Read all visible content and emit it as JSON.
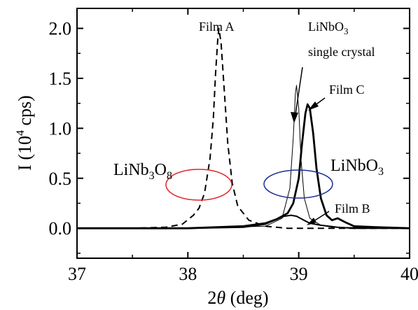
{
  "chart_data": {
    "type": "line",
    "xlabel": {
      "prefix": "2",
      "theta": "θ",
      "suffix": " (deg)"
    },
    "ylabel": {
      "prefix": "I (10",
      "sup": "4",
      "suffix": " cps)"
    },
    "xlim": [
      37,
      40
    ],
    "ylim": [
      -0.3,
      2.2
    ],
    "xticks": [
      37,
      38,
      39,
      40
    ],
    "xtick_labels": [
      "37",
      "38",
      "39",
      "40"
    ],
    "yticks": [
      0.0,
      0.5,
      1.0,
      1.5,
      2.0
    ],
    "ytick_labels": [
      "0.0",
      "0.5",
      "1.0",
      "1.5",
      "2.0"
    ],
    "grid": false,
    "legend": "none",
    "series": [
      {
        "name": "Film A",
        "style": "dashed",
        "x": [
          37.0,
          37.5,
          37.8,
          37.95,
          38.05,
          38.1,
          38.15,
          38.2,
          38.23,
          38.25,
          38.27,
          38.28,
          38.3,
          38.33,
          38.36,
          38.4,
          38.45,
          38.55,
          38.7,
          38.9,
          39.2,
          39.6,
          40.0
        ],
        "y": [
          0.0,
          0.0,
          0.01,
          0.04,
          0.13,
          0.2,
          0.35,
          0.7,
          1.1,
          1.55,
          1.9,
          2.0,
          1.85,
          1.35,
          0.85,
          0.45,
          0.22,
          0.08,
          0.02,
          0.0,
          0.0,
          0.0,
          0.0
        ]
      },
      {
        "name": "Film B",
        "style": "solid-medium",
        "x": [
          37.0,
          38.0,
          38.5,
          38.7,
          38.8,
          38.87,
          38.93,
          38.98,
          39.03,
          39.1,
          39.2,
          39.35,
          39.5,
          40.0
        ],
        "y": [
          0.0,
          0.0,
          0.01,
          0.04,
          0.09,
          0.12,
          0.13,
          0.12,
          0.09,
          0.05,
          0.03,
          0.01,
          0.0,
          0.0
        ]
      },
      {
        "name": "LiNbO3 single crystal",
        "style": "solid-thin",
        "x": [
          37.0,
          38.0,
          38.7,
          38.85,
          38.92,
          38.95,
          38.97,
          38.98,
          39.0,
          39.02,
          39.05,
          39.1,
          39.2,
          39.3,
          40.0
        ],
        "y": [
          0.0,
          0.0,
          0.02,
          0.1,
          0.4,
          0.9,
          1.35,
          1.43,
          1.2,
          0.7,
          0.3,
          0.1,
          0.03,
          0.01,
          0.0
        ]
      },
      {
        "name": "Film C",
        "style": "solid-thick",
        "x": [
          37.0,
          37.5,
          38.0,
          38.5,
          38.7,
          38.8,
          38.9,
          38.95,
          39.0,
          39.03,
          39.06,
          39.08,
          39.1,
          39.13,
          39.16,
          39.2,
          39.25,
          39.3,
          39.35,
          39.42,
          39.5,
          39.7,
          40.0
        ],
        "y": [
          0.0,
          0.0,
          0.0,
          0.02,
          0.05,
          0.09,
          0.15,
          0.25,
          0.5,
          0.85,
          1.15,
          1.24,
          1.2,
          0.95,
          0.6,
          0.3,
          0.13,
          0.08,
          0.1,
          0.06,
          0.02,
          0.01,
          0.0
        ]
      }
    ],
    "annotations": {
      "film_a": "Film A",
      "linbo3_sc_line1": {
        "base": "LiNbO",
        "sub": "3"
      },
      "linbo3_sc_line2": "single crystal",
      "film_c": "Film C",
      "film_b": "Film B",
      "linb3o8": {
        "a": "LiNb",
        "sub1": "3",
        "b": "O",
        "sub2": "8"
      },
      "linbo3": {
        "base": "LiNbO",
        "sub": "3"
      }
    },
    "highlight_colors": {
      "linb3o8": "#e0262b",
      "linbo3": "#1d2f95"
    }
  }
}
